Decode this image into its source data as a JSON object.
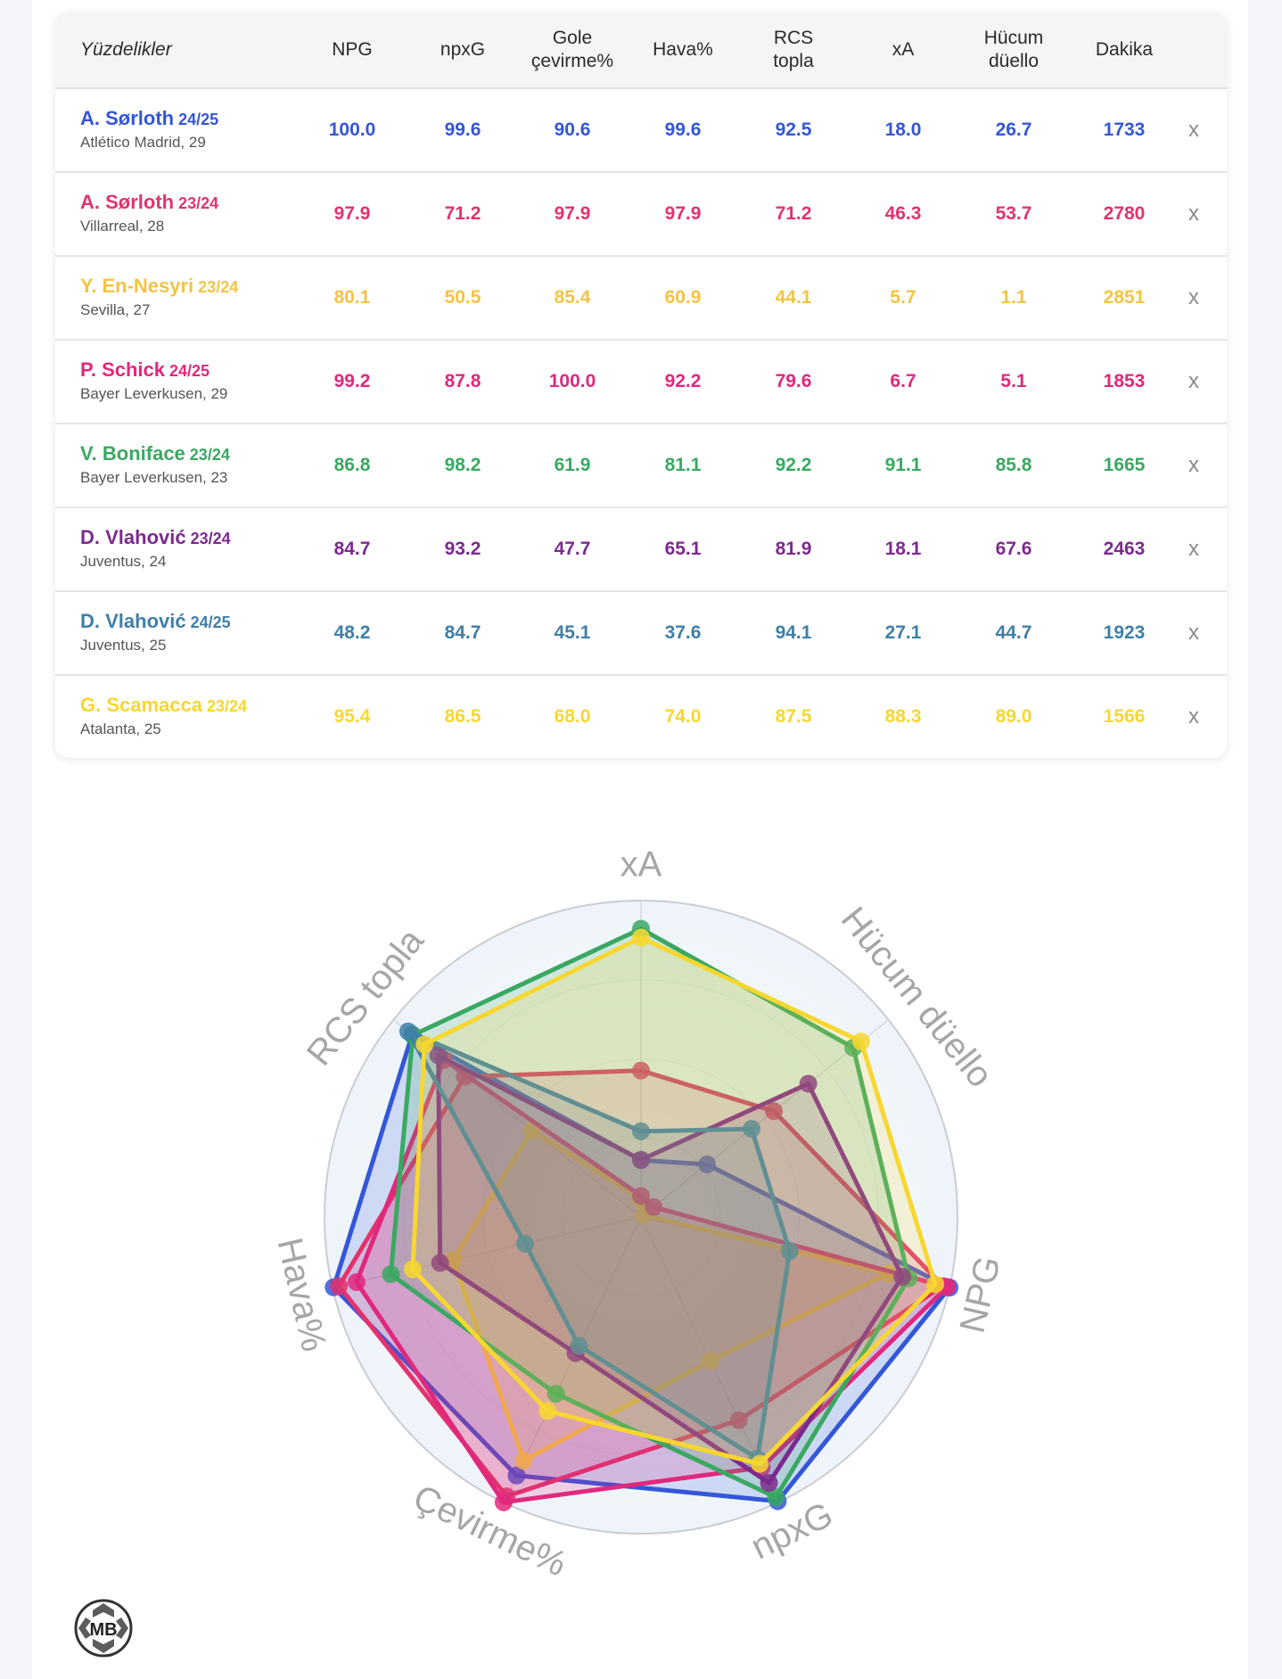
{
  "table": {
    "header_first": "Yüzdelikler",
    "columns": [
      "NPG",
      "npxG",
      "Gole\nçevirme%",
      "Hava%",
      "RCS\ntopla",
      "xA",
      "Hücum\ndüello",
      "Dakika"
    ],
    "close_label": "x"
  },
  "players": [
    {
      "name": "A. Sørloth",
      "season": "24/25",
      "team": "Atlético Madrid, 29",
      "color": "#3456d8",
      "values": [
        "100.0",
        "99.6",
        "90.6",
        "99.6",
        "92.5",
        "18.0",
        "26.7",
        "1733"
      ]
    },
    {
      "name": "A. Sørloth",
      "season": "23/24",
      "team": "Villarreal, 28",
      "color": "#e2336e",
      "values": [
        "97.9",
        "71.2",
        "97.9",
        "97.9",
        "71.2",
        "46.3",
        "53.7",
        "2780"
      ]
    },
    {
      "name": "Y. En-Nesyri",
      "season": "23/24",
      "team": "Sevilla, 27",
      "color": "#f4c442",
      "values": [
        "80.1",
        "50.5",
        "85.4",
        "60.9",
        "44.1",
        "5.7",
        "1.1",
        "2851"
      ]
    },
    {
      "name": "P. Schick",
      "season": "24/25",
      "team": "Bayer Leverkusen, 29",
      "color": "#e0287d",
      "values": [
        "99.2",
        "87.8",
        "100.0",
        "92.2",
        "79.6",
        "6.7",
        "5.1",
        "1853"
      ]
    },
    {
      "name": "V. Boniface",
      "season": "23/24",
      "team": "Bayer Leverkusen, 23",
      "color": "#3aa862",
      "values": [
        "86.8",
        "98.2",
        "61.9",
        "81.1",
        "92.2",
        "91.1",
        "85.8",
        "1665"
      ]
    },
    {
      "name": "D. Vlahović",
      "season": "23/24",
      "team": "Juventus, 24",
      "color": "#7b2a8e",
      "values": [
        "84.7",
        "93.2",
        "47.7",
        "65.1",
        "81.9",
        "18.1",
        "67.6",
        "2463"
      ]
    },
    {
      "name": "D. Vlahović",
      "season": "24/25",
      "team": "Juventus, 25",
      "color": "#3f7fa8",
      "values": [
        "48.2",
        "84.7",
        "45.1",
        "37.6",
        "94.1",
        "27.1",
        "44.7",
        "1923"
      ]
    },
    {
      "name": "G. Scamacca",
      "season": "23/24",
      "team": "Atalanta, 25",
      "color": "#f7d730",
      "values": [
        "95.4",
        "86.5",
        "68.0",
        "74.0",
        "87.5",
        "88.3",
        "89.0",
        "1566"
      ]
    }
  ],
  "chart_data": {
    "type": "radar",
    "axes": [
      "xA",
      "Hücum düello",
      "NPG",
      "npxG",
      "Çevirme%",
      "Hava%",
      "RCS topla"
    ],
    "range": [
      0,
      100
    ],
    "series": [
      {
        "name": "A. Sørloth 24/25",
        "color": "#3456d8",
        "values": [
          18.0,
          26.7,
          100.0,
          99.6,
          90.6,
          99.6,
          92.5
        ]
      },
      {
        "name": "A. Sørloth 23/24",
        "color": "#e2336e",
        "values": [
          46.3,
          53.7,
          97.9,
          71.2,
          97.9,
          97.9,
          71.2
        ]
      },
      {
        "name": "Y. En-Nesyri 23/24",
        "color": "#f4c442",
        "values": [
          5.7,
          1.1,
          80.1,
          50.5,
          85.4,
          60.9,
          44.1
        ]
      },
      {
        "name": "P. Schick 24/25",
        "color": "#e0287d",
        "values": [
          6.7,
          5.1,
          99.2,
          87.8,
          100.0,
          92.2,
          79.6
        ]
      },
      {
        "name": "V. Boniface 23/24",
        "color": "#3aa862",
        "values": [
          91.1,
          85.8,
          86.8,
          98.2,
          61.9,
          81.1,
          92.2
        ]
      },
      {
        "name": "D. Vlahović 23/24",
        "color": "#7b2a8e",
        "values": [
          18.1,
          67.6,
          84.7,
          93.2,
          47.7,
          65.1,
          81.9
        ]
      },
      {
        "name": "D. Vlahović 24/25",
        "color": "#3f7fa8",
        "values": [
          27.1,
          44.7,
          48.2,
          84.7,
          45.1,
          37.6,
          94.1
        ]
      },
      {
        "name": "G. Scamacca 23/24",
        "color": "#f7d730",
        "values": [
          88.3,
          89.0,
          95.4,
          86.5,
          68.0,
          74.0,
          87.5
        ]
      }
    ]
  },
  "logo": {
    "text": "MB",
    "icon": "mb-logo-icon"
  }
}
